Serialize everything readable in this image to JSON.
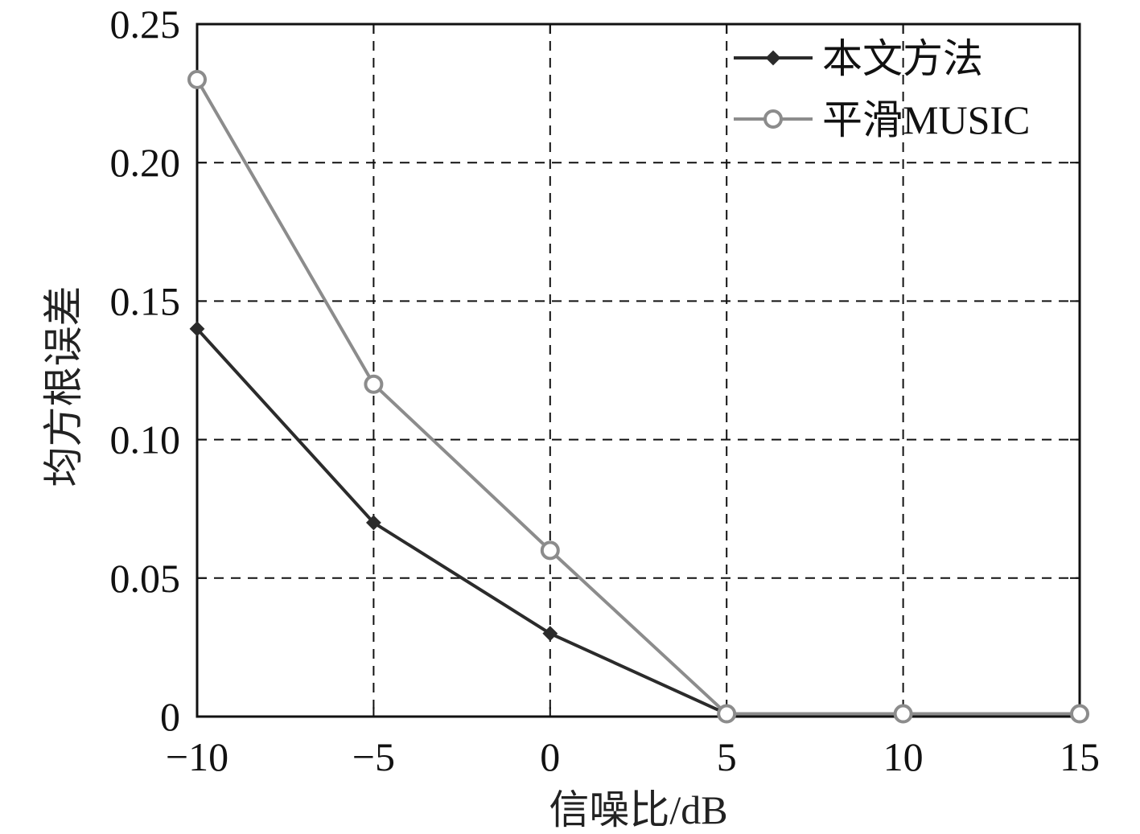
{
  "chart_data": {
    "type": "line",
    "xlabel": "信噪比/dB",
    "ylabel": "均方根误差",
    "xlim": [
      -10,
      15
    ],
    "ylim": [
      0,
      0.25
    ],
    "x_ticks": [
      -10,
      -5,
      0,
      5,
      10,
      15
    ],
    "x_tick_labels": [
      "−10",
      "−5",
      "0",
      "5",
      "10",
      "15"
    ],
    "y_ticks": [
      0,
      0.05,
      0.1,
      0.15,
      0.2,
      0.25
    ],
    "y_tick_labels": [
      "0",
      "0.05",
      "0.10",
      "0.15",
      "0.20",
      "0.25"
    ],
    "grid": true,
    "grid_style": "dashed",
    "legend_position": "top-right",
    "x": [
      -10,
      -5,
      0,
      5,
      10,
      15
    ],
    "series": [
      {
        "name": "本文方法",
        "values": [
          0.14,
          0.07,
          0.03,
          0.001,
          0.001,
          0.001
        ],
        "color": "#2b2b2b",
        "marker": "filled-diamond"
      },
      {
        "name": "平滑MUSIC",
        "values": [
          0.23,
          0.12,
          0.06,
          0.001,
          0.001,
          0.001
        ],
        "color": "#8c8c8c",
        "marker": "open-circle"
      }
    ]
  }
}
